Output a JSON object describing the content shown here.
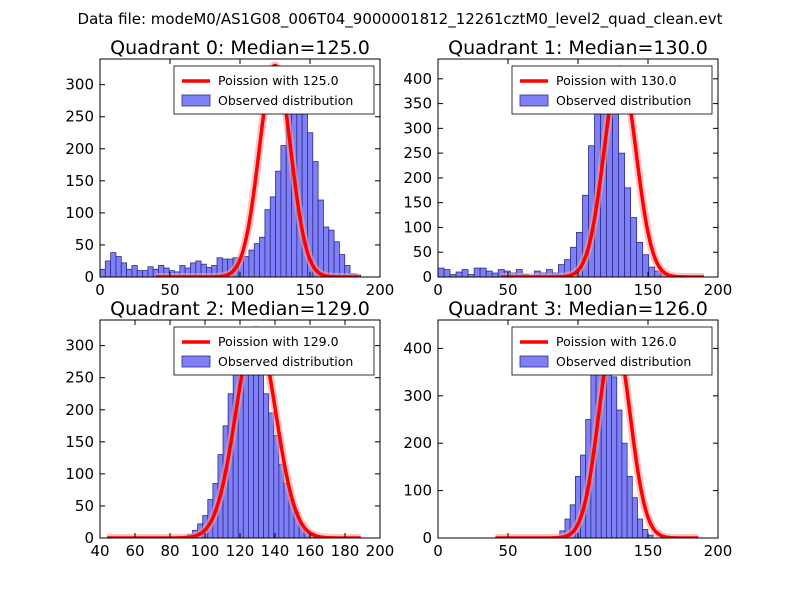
{
  "figure": {
    "suptitle": "Data file: modeM0/AS1G08_006T04_9000001812_12261cztM0_level2_quad_clean.evt",
    "colors": {
      "bars": "#7f7ff6",
      "bar_edge": "#2d2d8c",
      "fit": "#ff0000",
      "fit_glow": "#f4a0a0"
    }
  },
  "chart_data": [
    {
      "type": "bar",
      "title": "Quadrant 0: Median=125.0",
      "xlim": [
        0,
        200
      ],
      "ylim": [
        0,
        340
      ],
      "xticks": [
        0,
        50,
        100,
        150,
        200
      ],
      "yticks": [
        0,
        50,
        100,
        150,
        200,
        250,
        300
      ],
      "legend": [
        "Poission with 125.0",
        "Observed distribution"
      ],
      "fit_mu": 125,
      "fit_peak": 330,
      "bin_width": 3.8,
      "bin_start": 0,
      "values": [
        12,
        25,
        38,
        32,
        22,
        12,
        18,
        10,
        10,
        16,
        12,
        18,
        14,
        10,
        8,
        18,
        14,
        22,
        25,
        20,
        15,
        18,
        30,
        28,
        28,
        30,
        28,
        32,
        42,
        52,
        62,
        105,
        125,
        165,
        205,
        255,
        320,
        300,
        280,
        225,
        180,
        120,
        78,
        73,
        55,
        35,
        18,
        5,
        3,
        0
      ],
      "xlabel": "",
      "ylabel": ""
    },
    {
      "type": "bar",
      "title": "Quadrant 1: Median=130.0",
      "xlim": [
        0,
        200
      ],
      "ylim": [
        0,
        440
      ],
      "xticks": [
        0,
        50,
        100,
        150,
        200
      ],
      "yticks": [
        0,
        50,
        100,
        150,
        200,
        250,
        300,
        350,
        400
      ],
      "legend": [
        "Poission with 130.0",
        "Observed distribution"
      ],
      "fit_mu": 130,
      "fit_peak": 420,
      "bin_width": 4.3,
      "bin_start": 0,
      "values": [
        18,
        15,
        5,
        10,
        15,
        5,
        18,
        18,
        12,
        8,
        15,
        12,
        8,
        15,
        5,
        3,
        12,
        8,
        15,
        8,
        25,
        35,
        60,
        90,
        165,
        265,
        350,
        400,
        380,
        345,
        250,
        180,
        120,
        70,
        45,
        20,
        12,
        8,
        3,
        0,
        0,
        0,
        0,
        0,
        0,
        0
      ],
      "xlabel": "",
      "ylabel": ""
    },
    {
      "type": "bar",
      "title": "Quadrant 2: Median=129.0",
      "xlim": [
        40,
        200
      ],
      "ylim": [
        0,
        340
      ],
      "xticks": [
        40,
        60,
        80,
        100,
        120,
        140,
        160,
        180,
        200
      ],
      "yticks": [
        0,
        50,
        100,
        150,
        200,
        250,
        300
      ],
      "legend": [
        "Poission with 129.0",
        "Observed distribution"
      ],
      "fit_mu": 129,
      "fit_peak": 325,
      "bin_width": 2.9,
      "bin_start": 90,
      "values": [
        5,
        12,
        22,
        35,
        60,
        85,
        130,
        175,
        225,
        260,
        310,
        305,
        300,
        280,
        255,
        225,
        195,
        160,
        115,
        85,
        60,
        40,
        22,
        12,
        8,
        4,
        2
      ],
      "xlabel": "",
      "ylabel": ""
    },
    {
      "type": "bar",
      "title": "Quadrant 3: Median=126.0",
      "xlim": [
        0,
        200
      ],
      "ylim": [
        0,
        460
      ],
      "xticks": [
        0,
        50,
        100,
        150,
        200
      ],
      "yticks": [
        0,
        100,
        200,
        300,
        400
      ],
      "legend": [
        "Poission with 126.0",
        "Observed distribution"
      ],
      "fit_mu": 126,
      "fit_peak": 430,
      "bin_width": 3.7,
      "bin_start": 87,
      "values": [
        15,
        40,
        70,
        130,
        175,
        250,
        350,
        410,
        425,
        395,
        340,
        270,
        200,
        130,
        85,
        40,
        18,
        6
      ],
      "xlabel": "",
      "ylabel": ""
    }
  ]
}
